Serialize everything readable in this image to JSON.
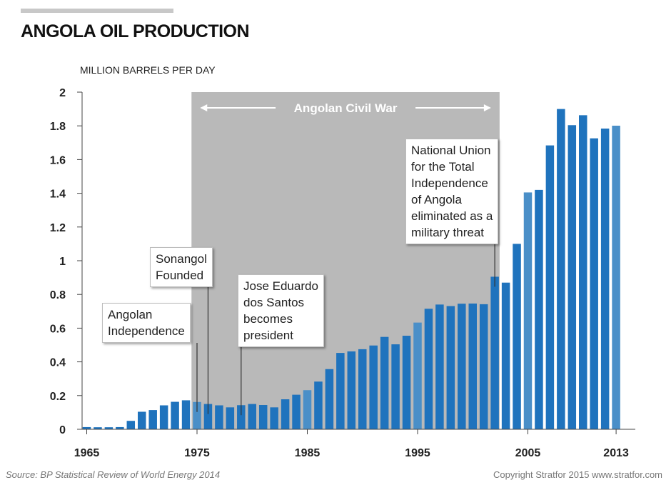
{
  "header": {
    "title": "ANGOLA OIL PRODUCTION",
    "unit_label": "MILLION BARRELS PER DAY"
  },
  "footer": {
    "source": "Source: BP Statistical Review of World Energy 2014",
    "copyright": "Copyright Stratfor 2015   www.stratfor.com"
  },
  "colors": {
    "bar": "#1f73bd",
    "bar_highlight": "#4a8fc8",
    "war_shade": "#b9b9b9",
    "axis": "#444444"
  },
  "chart_data": {
    "type": "bar",
    "title": "ANGOLA OIL PRODUCTION",
    "ylabel": "MILLION BARRELS PER DAY",
    "xlabel": "",
    "ylim": [
      0,
      2
    ],
    "yticks": [
      "0",
      "0.2",
      "0.4",
      "0.6",
      "0.8",
      "1",
      "1.2",
      "1.4",
      "1.6",
      "1.8",
      "2"
    ],
    "xticks": [
      "1965",
      "1975",
      "1985",
      "1995",
      "2005",
      "2013"
    ],
    "grid": false,
    "x": [
      1965,
      1966,
      1967,
      1968,
      1969,
      1970,
      1971,
      1972,
      1973,
      1974,
      1975,
      1976,
      1977,
      1978,
      1979,
      1980,
      1981,
      1982,
      1983,
      1984,
      1985,
      1986,
      1987,
      1988,
      1989,
      1990,
      1991,
      1992,
      1993,
      1994,
      1995,
      1996,
      1997,
      1998,
      1999,
      2000,
      2001,
      2002,
      2003,
      2004,
      2005,
      2006,
      2007,
      2008,
      2009,
      2010,
      2011,
      2012,
      2013
    ],
    "values": [
      0.013,
      0.012,
      0.012,
      0.013,
      0.05,
      0.104,
      0.114,
      0.142,
      0.163,
      0.172,
      0.162,
      0.15,
      0.142,
      0.13,
      0.143,
      0.15,
      0.144,
      0.13,
      0.178,
      0.205,
      0.232,
      0.283,
      0.357,
      0.453,
      0.462,
      0.475,
      0.497,
      0.548,
      0.504,
      0.555,
      0.633,
      0.715,
      0.74,
      0.731,
      0.745,
      0.746,
      0.742,
      0.905,
      0.87,
      1.1,
      1.405,
      1.42,
      1.684,
      1.9,
      1.804,
      1.863,
      1.726,
      1.784,
      1.801
    ],
    "highlight_years": [
      1975,
      1985,
      1995,
      2005,
      2013
    ],
    "shaded_region": {
      "label": "Angolan Civil War",
      "x_start": 1975,
      "x_end": 2002
    },
    "annotations": [
      {
        "lines": [
          "Angolan",
          "Independence"
        ],
        "x": 1975
      },
      {
        "lines": [
          "Sonangol",
          "Founded"
        ],
        "x": 1976
      },
      {
        "lines": [
          "Jose Eduardo",
          "dos Santos",
          "becomes",
          "president"
        ],
        "x": 1979
      },
      {
        "lines": [
          "National Union",
          "for the Total",
          "Independence",
          "of Angola",
          "eliminated as a",
          "military threat"
        ],
        "x": 2002
      }
    ]
  }
}
